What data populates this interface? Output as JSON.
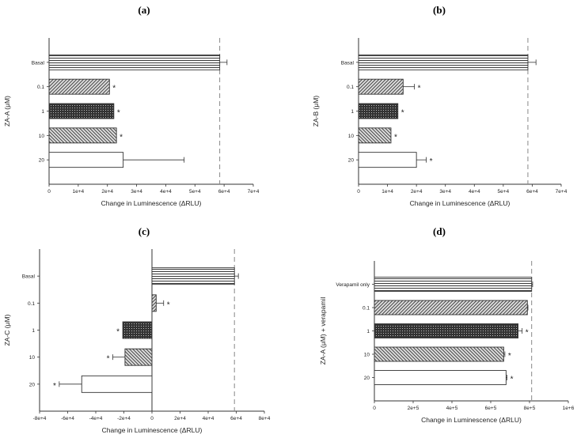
{
  "chart_data": [
    {
      "panel": "(a)",
      "type": "bar",
      "orientation": "horizontal",
      "ylabel": "ZA-A (μM)",
      "xlabel": "Change in Luminescence (ΔRLU)",
      "categories": [
        "Basal",
        "0.1",
        "1",
        "10",
        "20"
      ],
      "values": [
        58500,
        20700,
        22200,
        23100,
        25400
      ],
      "error_upper": [
        61000,
        null,
        null,
        null,
        46300
      ],
      "significant": [
        false,
        true,
        true,
        true,
        false
      ],
      "xlim": [
        0,
        70000
      ],
      "xticks": [
        "0",
        "1e+4",
        "2e+4",
        "3e+4",
        "4e+4",
        "5e+4",
        "6e+4",
        "7e+4"
      ],
      "reference_line": 58500,
      "grid": false
    },
    {
      "panel": "(b)",
      "type": "bar",
      "orientation": "horizontal",
      "ylabel": "ZA-B (μM)",
      "xlabel": "Change in Luminescence (ΔRLU)",
      "categories": [
        "Basal",
        "0.1",
        "1",
        "10",
        "20"
      ],
      "values": [
        58500,
        15400,
        13600,
        11200,
        20000
      ],
      "error_upper": [
        61300,
        19300,
        null,
        null,
        23400
      ],
      "significant": [
        false,
        true,
        true,
        true,
        true
      ],
      "xlim": [
        0,
        70000
      ],
      "xticks": [
        "0",
        "1e+4",
        "2e+4",
        "3e+4",
        "4e+4",
        "5e+4",
        "6e+4",
        "7e+4"
      ],
      "reference_line": 58500,
      "grid": false
    },
    {
      "panel": "(c)",
      "type": "bar",
      "orientation": "horizontal",
      "ylabel": "ZA-C (μM)",
      "xlabel": "Change in Luminescence (ΔRLU)",
      "categories": [
        "Basal",
        "0.1",
        "1",
        "10",
        "20"
      ],
      "values": [
        58700,
        3000,
        -20800,
        -19200,
        -50000
      ],
      "error_upper": [
        61500,
        8300,
        null,
        -27900,
        -66000
      ],
      "significant": [
        false,
        true,
        true,
        true,
        true
      ],
      "xlim": [
        -80000,
        80000
      ],
      "xticks": [
        "-8e+4",
        "-6e+4",
        "-4e+4",
        "-2e+4",
        "0",
        "2e+4",
        "4e+4",
        "6e+4",
        "8e+4"
      ],
      "reference_line": 58700,
      "grid": false
    },
    {
      "panel": "(d)",
      "type": "bar",
      "orientation": "horizontal",
      "ylabel": "ZA-A (μM) + verapamil",
      "xlabel": "Change in Luminescence (ΔRLU)",
      "categories": [
        "Verapamil only",
        "0.1",
        "1",
        "10",
        "20"
      ],
      "values": [
        811000,
        789000,
        741000,
        667000,
        679000
      ],
      "error_upper": [
        816000,
        792000,
        762000,
        673000,
        684000
      ],
      "significant": [
        false,
        false,
        true,
        true,
        true
      ],
      "xlim": [
        0,
        1000000
      ],
      "xticks": [
        "0",
        "2e+5",
        "4e+5",
        "6e+5",
        "8e+5",
        "1e+6"
      ],
      "reference_line": 811000,
      "grid": false
    }
  ],
  "significance_marker": "*",
  "bar_patterns": [
    "horizontal-lines",
    "back-diagonal-hatch",
    "dark-crosshatch",
    "forward-diagonal-hatch",
    "white"
  ]
}
